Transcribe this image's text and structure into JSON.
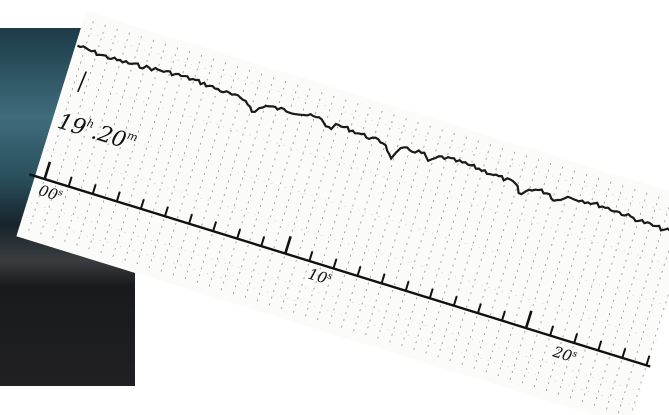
{
  "recording": {
    "time_label": {
      "hour": "19",
      "hour_unit": "h",
      "minute": ".20",
      "minute_unit": "m"
    },
    "scale_labels": [
      {
        "number": "00",
        "unit": "s"
      },
      {
        "number": "10",
        "unit": "s"
      },
      {
        "number": "20",
        "unit": "s"
      }
    ]
  }
}
